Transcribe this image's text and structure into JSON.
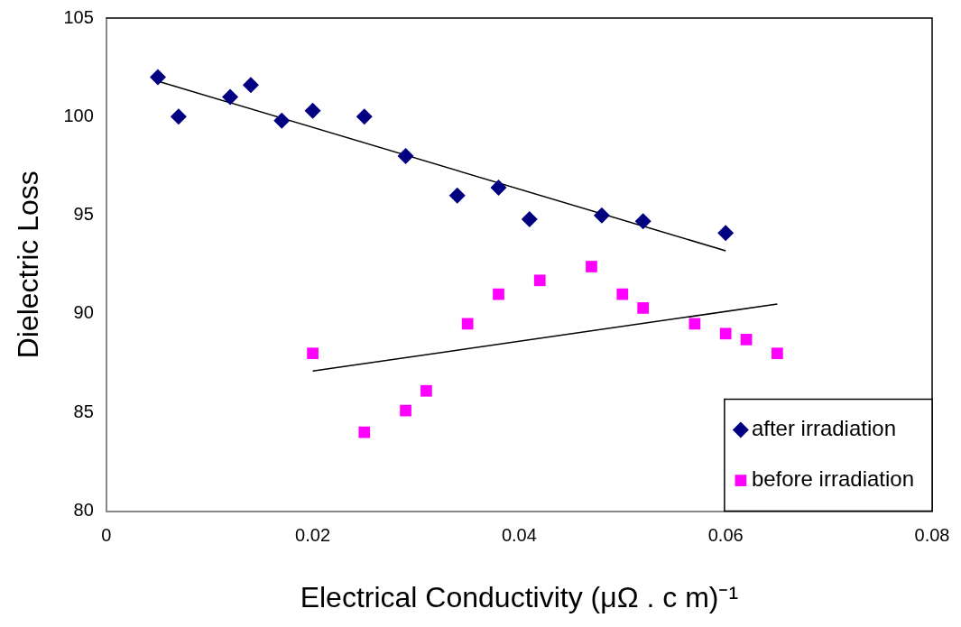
{
  "chart_data": {
    "type": "scatter",
    "xlabel": "Electrical Conductivity (μΩ . c m)⁻¹",
    "ylabel": "Dielectric Loss",
    "xlim": [
      0,
      0.08
    ],
    "xticks": [
      0,
      0.02,
      0.04,
      0.06,
      0.08
    ],
    "ylim": [
      80,
      105
    ],
    "yticks": [
      80,
      85,
      90,
      95,
      100,
      105
    ],
    "grid": false,
    "legend": "bottom right",
    "series": [
      {
        "name": "after irradiation",
        "marker": "diamond",
        "color": "#000080",
        "x": [
          0.005,
          0.007,
          0.012,
          0.014,
          0.017,
          0.02,
          0.025,
          0.029,
          0.034,
          0.038,
          0.041,
          0.048,
          0.052,
          0.06
        ],
        "values": [
          102.0,
          100.0,
          101.0,
          101.6,
          99.8,
          100.3,
          100.0,
          98.0,
          96.0,
          96.4,
          94.8,
          95.0,
          94.7,
          94.1
        ]
      },
      {
        "name": "before irradiation",
        "marker": "square",
        "color": "#ff00ff",
        "x": [
          0.02,
          0.025,
          0.029,
          0.031,
          0.035,
          0.038,
          0.042,
          0.047,
          0.05,
          0.052,
          0.057,
          0.06,
          0.062,
          0.065
        ],
        "values": [
          88.0,
          84.0,
          85.1,
          86.1,
          89.5,
          91.0,
          91.7,
          92.4,
          91.0,
          90.3,
          89.5,
          89.0,
          88.7,
          88.0
        ]
      },
      {
        "type": "line",
        "marker": "none",
        "color": "#000000",
        "x": [
          0.005,
          0.06
        ],
        "values": [
          101.8,
          93.2
        ]
      },
      {
        "type": "line",
        "marker": "none",
        "color": "#000000",
        "x": [
          0.02,
          0.065
        ],
        "values": [
          87.1,
          90.5
        ]
      }
    ]
  }
}
